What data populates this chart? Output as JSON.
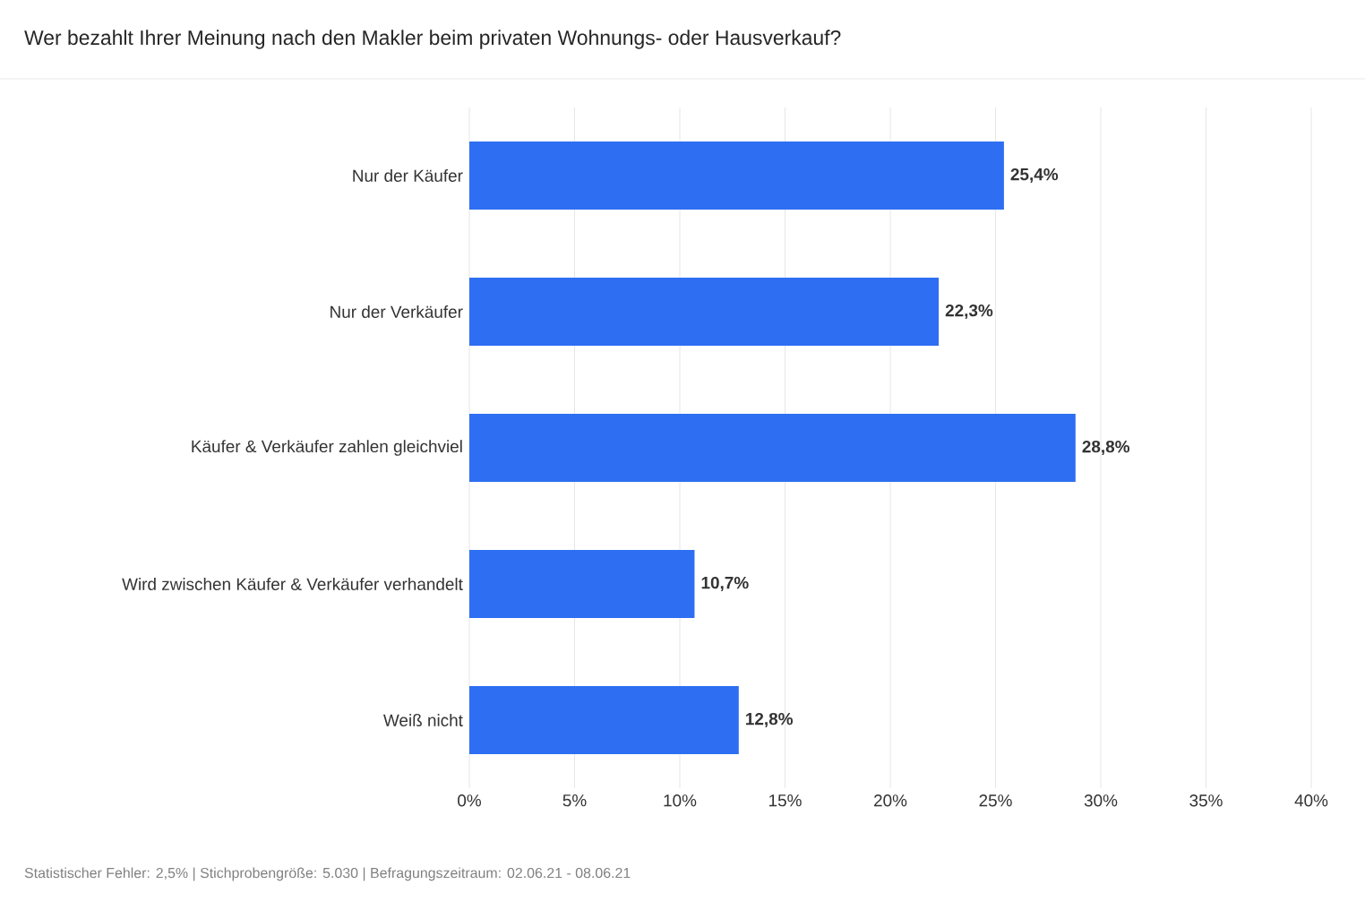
{
  "chart_data": {
    "type": "bar",
    "orientation": "horizontal",
    "title": "Wer bezahlt Ihrer Meinung nach den Makler beim privaten Wohnungs- oder Hausverkauf?",
    "categories": [
      "Nur der Käufer",
      "Nur der Verkäufer",
      "Käufer & Verkäufer zahlen gleichviel",
      "Wird zwischen Käufer & Verkäufer verhandelt",
      "Weiß nicht"
    ],
    "values": [
      25.4,
      22.3,
      28.8,
      10.7,
      12.8
    ],
    "value_labels": [
      "25,4%",
      "22,3%",
      "28,8%",
      "10,7%",
      "12,8%"
    ],
    "color": "#2e6ef2",
    "xlim": [
      0,
      40
    ],
    "xticks": [
      {
        "value": 0,
        "label": "0%"
      },
      {
        "value": 5,
        "label": "5%"
      },
      {
        "value": 10,
        "label": "10%"
      },
      {
        "value": 15,
        "label": "15%"
      },
      {
        "value": 20,
        "label": "20%"
      },
      {
        "value": 25,
        "label": "25%"
      },
      {
        "value": 30,
        "label": "30%"
      },
      {
        "value": 35,
        "label": "35%"
      },
      {
        "value": 40,
        "label": "40%"
      }
    ],
    "grid": "x",
    "annotations": [
      "Statistischer Fehler: 2,5% | Stichprobengröße: 5.030 | Befragungszeitraum: 02.06.21 - 08.06.21"
    ]
  }
}
